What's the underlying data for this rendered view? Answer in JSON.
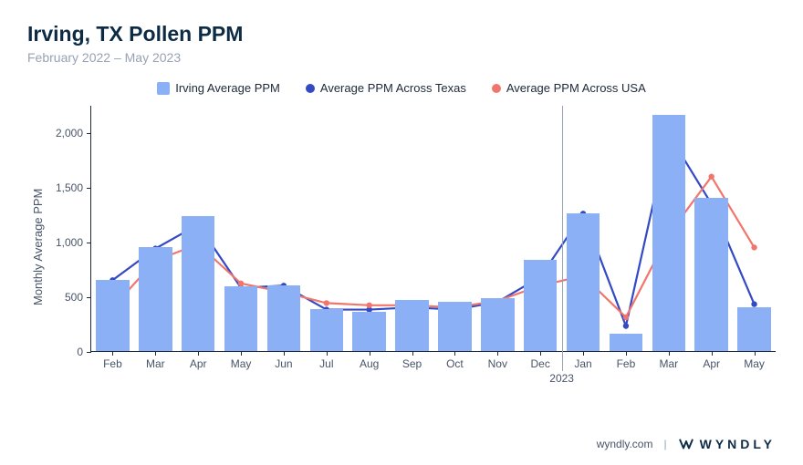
{
  "title": "Irving, TX Pollen PPM",
  "subtitle": "February 2022 – May 2023",
  "ylabel": "Monthly Average PPM",
  "footer_url": "wyndly.com",
  "brand": "WYNDLY",
  "legend": [
    {
      "label": "Irving Average PPM",
      "type": "bar",
      "color": "#8bb0f5"
    },
    {
      "label": "Average PPM Across Texas",
      "type": "dot",
      "color": "#3449c4"
    },
    {
      "label": "Average PPM Across USA",
      "type": "dot",
      "color": "#f0766d"
    }
  ],
  "chart": {
    "type": "bar+line",
    "ylim": [
      0,
      2250
    ],
    "yticks": [
      0,
      500,
      1000,
      1500,
      2000
    ],
    "ytick_labels": [
      "0",
      "500",
      "1,000",
      "1,500",
      "2,000"
    ],
    "background_color": "#ffffff",
    "axis_color": "#1d2939",
    "year_divider": {
      "after_index": 10,
      "label": "2023"
    },
    "categories": [
      "Feb",
      "Mar",
      "Apr",
      "May",
      "Jun",
      "Jul",
      "Aug",
      "Sep",
      "Oct",
      "Nov",
      "Dec",
      "Jan",
      "Feb",
      "Mar",
      "Apr",
      "May"
    ],
    "bars": {
      "color": "#8bb0f5",
      "width_frac": 0.78,
      "values": [
        650,
        950,
        1230,
        590,
        600,
        380,
        360,
        470,
        450,
        480,
        830,
        1260,
        160,
        2160,
        1400,
        400
      ]
    },
    "lines": [
      {
        "name": "texas",
        "color": "#3449c4",
        "width": 2.2,
        "marker_radius": 3.2,
        "values": [
          650,
          940,
          1160,
          580,
          600,
          380,
          380,
          400,
          380,
          450,
          680,
          1260,
          230,
          1990,
          1350,
          430
        ]
      },
      {
        "name": "usa",
        "color": "#f0766d",
        "width": 2.2,
        "marker_radius": 3.2,
        "values": [
          400,
          830,
          980,
          620,
          540,
          440,
          420,
          420,
          400,
          460,
          600,
          690,
          310,
          1070,
          1600,
          950
        ]
      }
    ]
  }
}
